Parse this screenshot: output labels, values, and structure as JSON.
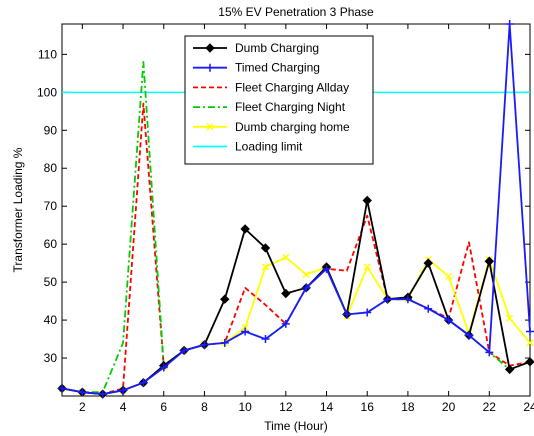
{
  "chart_data": {
    "type": "line",
    "title": "15% EV Penetration 3 Phase",
    "xlabel": "Time (Hour)",
    "ylabel": "Transformer Loading %",
    "xlim": [
      1,
      24
    ],
    "ylim": [
      20,
      118
    ],
    "xticks": [
      2,
      4,
      6,
      8,
      10,
      12,
      14,
      16,
      18,
      20,
      22,
      24
    ],
    "yticks": [
      30,
      40,
      50,
      60,
      70,
      80,
      90,
      100,
      110
    ],
    "grid": false,
    "legend_position": "top-center",
    "x": [
      1,
      2,
      3,
      4,
      5,
      6,
      7,
      8,
      9,
      10,
      11,
      12,
      13,
      14,
      15,
      16,
      17,
      18,
      19,
      20,
      21,
      22,
      23,
      24
    ],
    "series": [
      {
        "name": "Dumb Charging",
        "color": "#000000",
        "dash": "solid",
        "marker": "diamond",
        "values": [
          22,
          21,
          20.5,
          21.5,
          23.5,
          28,
          32,
          33.5,
          45.5,
          64,
          59,
          47,
          48.5,
          54,
          41.5,
          71.5,
          45.5,
          46,
          55,
          40,
          36,
          55.5,
          27,
          29
        ]
      },
      {
        "name": "Timed Charging",
        "color": "#1a1aff",
        "dash": "solid",
        "marker": "plus",
        "values": [
          22,
          21,
          20.5,
          21.5,
          23.5,
          27.5,
          32,
          33.5,
          34,
          37,
          35,
          39,
          48.5,
          53.5,
          41.5,
          42,
          45.5,
          45.5,
          43,
          40,
          36,
          31.5,
          118,
          37
        ]
      },
      {
        "name": "Fleet Charging Allday",
        "color": "#ff0000",
        "dash": "dashed",
        "marker": "none",
        "values": [
          22,
          21,
          20.5,
          22,
          97,
          28,
          32,
          33.5,
          34,
          48.5,
          44,
          39,
          48.5,
          53.5,
          53,
          67.5,
          45.5,
          45.5,
          43,
          40.5,
          60.5,
          31.5,
          28,
          29
        ]
      },
      {
        "name": "Fleet Charging Night",
        "color": "#00cc00",
        "dash": "dashdot",
        "marker": "none",
        "values": [
          22,
          21,
          21,
          34,
          108,
          28,
          32,
          33.5,
          34,
          37,
          35,
          39,
          48.5,
          53.5,
          41.5,
          42,
          45.5,
          45.5,
          43,
          40,
          36,
          31.5,
          27,
          29
        ]
      },
      {
        "name": "Dumb charging home",
        "color": "#ffff00",
        "dash": "solid",
        "marker": "x",
        "values": [
          22,
          21,
          20.5,
          21.5,
          23.5,
          27.5,
          32,
          33.5,
          34,
          38,
          54,
          56.5,
          52,
          54,
          41,
          54,
          45.5,
          45.5,
          56,
          51.5,
          36.5,
          56,
          40.5,
          34
        ]
      },
      {
        "name": "Loading limit",
        "color": "#00ffff",
        "dash": "solid",
        "marker": "none",
        "values": [
          100,
          100,
          100,
          100,
          100,
          100,
          100,
          100,
          100,
          100,
          100,
          100,
          100,
          100,
          100,
          100,
          100,
          100,
          100,
          100,
          100,
          100,
          100,
          100
        ]
      }
    ]
  }
}
